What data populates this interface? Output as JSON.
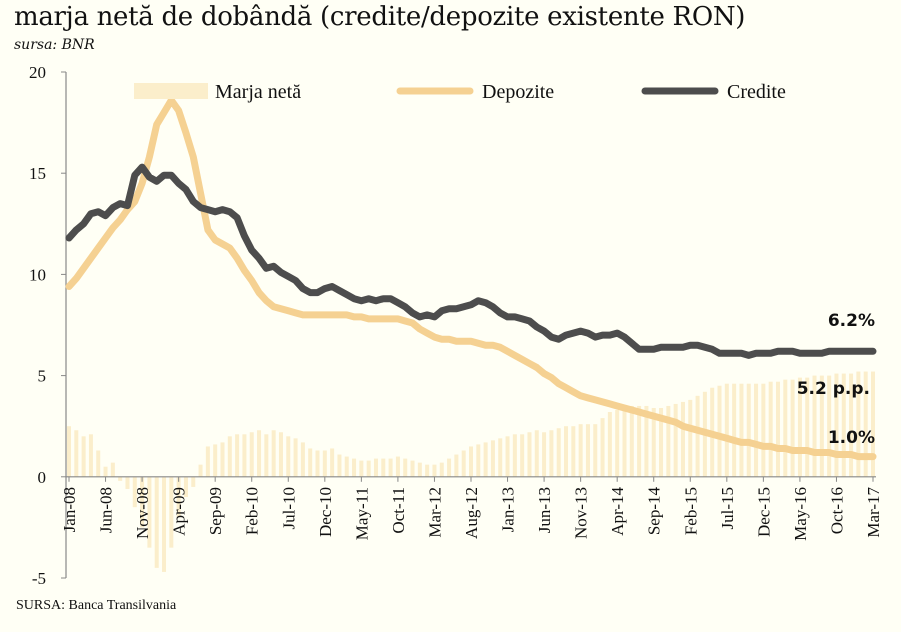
{
  "title": "marja netă de dobândă (credite/depozite existente RON)",
  "subtitle": "sursa: BNR",
  "source": "SURSA: Banca Transilvania",
  "chart_data": {
    "type": "line",
    "ylim": [
      -5,
      20
    ],
    "yticks": [
      -5,
      0,
      5,
      10,
      15,
      20
    ],
    "grid": false,
    "legend_position": "top",
    "xtick_labels": [
      "Jan-08",
      "Jun-08",
      "Nov-08",
      "Apr-09",
      "Sep-09",
      "Feb-10",
      "Jul-10",
      "Dec-10",
      "May-11",
      "Oct-11",
      "Mar-12",
      "Aug-12",
      "Jan-13",
      "Jun-13",
      "Nov-13",
      "Apr-14",
      "Sep-14",
      "Feb-15",
      "Jul-15",
      "Dec-15",
      "May-16",
      "Oct-16",
      "Mar-17"
    ],
    "x_start": "Jan-08",
    "x_end": "Mar-17",
    "series": [
      {
        "name": "Marja netă",
        "kind": "bar",
        "color": "#fbeecb",
        "values": [
          2.5,
          2.3,
          2.0,
          2.1,
          1.3,
          0.5,
          0.7,
          -0.2,
          -0.6,
          -1.5,
          -2.5,
          -3.5,
          -4.5,
          -4.7,
          -3.5,
          -2.0,
          -1.0,
          -0.5,
          0.6,
          1.5,
          1.6,
          1.7,
          2.0,
          2.1,
          2.1,
          2.2,
          2.3,
          2.1,
          2.3,
          2.2,
          2.0,
          1.9,
          1.7,
          1.4,
          1.3,
          1.3,
          1.4,
          1.1,
          1.0,
          0.9,
          0.8,
          0.8,
          0.9,
          0.9,
          0.9,
          1.0,
          0.9,
          0.8,
          0.7,
          0.6,
          0.6,
          0.7,
          0.9,
          1.1,
          1.3,
          1.5,
          1.6,
          1.7,
          1.8,
          1.9,
          2.0,
          2.1,
          2.1,
          2.2,
          2.3,
          2.2,
          2.3,
          2.4,
          2.5,
          2.5,
          2.6,
          2.6,
          2.6,
          2.9,
          3.2,
          3.3,
          3.4,
          3.5,
          3.5,
          3.5,
          3.4,
          3.4,
          3.5,
          3.6,
          3.7,
          3.8,
          4.0,
          4.2,
          4.4,
          4.5,
          4.6,
          4.6,
          4.6,
          4.6,
          4.6,
          4.6,
          4.7,
          4.7,
          4.8,
          4.8,
          4.9,
          4.9,
          5.0,
          5.0,
          5.0,
          5.1,
          5.1,
          5.1,
          5.2,
          5.2,
          5.2
        ]
      },
      {
        "name": "Depozite",
        "kind": "line",
        "color": "#f5d192",
        "values": [
          9.4,
          9.8,
          10.3,
          10.8,
          11.3,
          11.8,
          12.3,
          12.7,
          13.2,
          13.6,
          14.5,
          15.8,
          17.4,
          18.0,
          18.6,
          18.1,
          17.0,
          15.8,
          14.0,
          12.2,
          11.7,
          11.5,
          11.3,
          10.8,
          10.2,
          9.7,
          9.1,
          8.7,
          8.4,
          8.3,
          8.2,
          8.1,
          8.0,
          8.0,
          8.0,
          8.0,
          8.0,
          8.0,
          8.0,
          7.9,
          7.9,
          7.8,
          7.8,
          7.8,
          7.8,
          7.8,
          7.7,
          7.6,
          7.3,
          7.1,
          6.9,
          6.8,
          6.8,
          6.7,
          6.7,
          6.7,
          6.6,
          6.5,
          6.5,
          6.4,
          6.2,
          6.0,
          5.8,
          5.6,
          5.4,
          5.1,
          4.9,
          4.6,
          4.4,
          4.2,
          4.0,
          3.9,
          3.8,
          3.7,
          3.6,
          3.5,
          3.4,
          3.3,
          3.2,
          3.1,
          3.0,
          2.9,
          2.8,
          2.7,
          2.5,
          2.4,
          2.3,
          2.2,
          2.1,
          2.0,
          1.9,
          1.8,
          1.7,
          1.7,
          1.6,
          1.5,
          1.5,
          1.4,
          1.4,
          1.3,
          1.3,
          1.3,
          1.2,
          1.2,
          1.2,
          1.1,
          1.1,
          1.1,
          1.0,
          1.0,
          1.0
        ]
      },
      {
        "name": "Credite",
        "kind": "line",
        "color": "#4d4d4d",
        "values": [
          11.8,
          12.2,
          12.5,
          13.0,
          13.1,
          12.9,
          13.3,
          13.5,
          13.4,
          14.9,
          15.3,
          14.8,
          14.6,
          14.9,
          14.9,
          14.5,
          14.2,
          13.6,
          13.3,
          13.2,
          13.1,
          13.2,
          13.1,
          12.8,
          11.9,
          11.2,
          10.8,
          10.3,
          10.4,
          10.1,
          9.9,
          9.7,
          9.3,
          9.1,
          9.1,
          9.3,
          9.4,
          9.2,
          9.0,
          8.8,
          8.7,
          8.8,
          8.7,
          8.8,
          8.8,
          8.6,
          8.4,
          8.1,
          7.9,
          8.0,
          7.9,
          8.2,
          8.3,
          8.3,
          8.4,
          8.5,
          8.7,
          8.6,
          8.4,
          8.1,
          7.9,
          7.9,
          7.8,
          7.7,
          7.4,
          7.2,
          6.9,
          6.8,
          7.0,
          7.1,
          7.2,
          7.1,
          6.9,
          7.0,
          7.0,
          7.1,
          6.9,
          6.6,
          6.3,
          6.3,
          6.3,
          6.4,
          6.4,
          6.4,
          6.4,
          6.5,
          6.5,
          6.4,
          6.3,
          6.1,
          6.1,
          6.1,
          6.1,
          6.0,
          6.1,
          6.1,
          6.1,
          6.2,
          6.2,
          6.2,
          6.1,
          6.1,
          6.1,
          6.1,
          6.2,
          6.2,
          6.2,
          6.2,
          6.2,
          6.2,
          6.2
        ]
      }
    ],
    "annotations": [
      {
        "text": "6.2%"
      },
      {
        "text": "5.2 p.p."
      },
      {
        "text": "1.0%"
      }
    ]
  }
}
